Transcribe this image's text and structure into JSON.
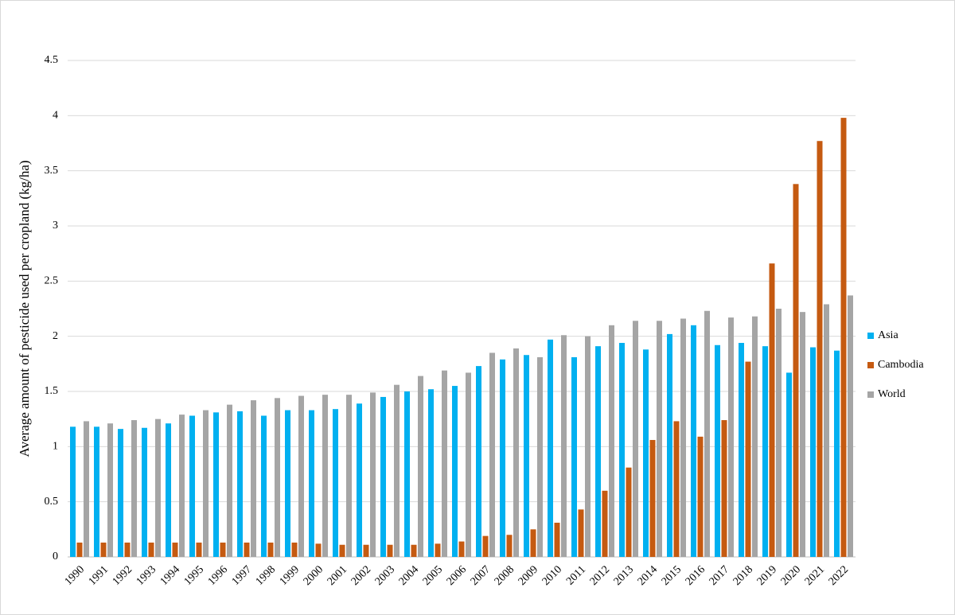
{
  "chart_data": {
    "type": "bar",
    "y_label": "Average  amount of pesticide used per cropland (kg/ha)",
    "categories": [
      "1990",
      "1991",
      "1992",
      "1993",
      "1994",
      "1995",
      "1996",
      "1997",
      "1998",
      "1999",
      "2000",
      "2001",
      "2002",
      "2003",
      "2004",
      "2005",
      "2006",
      "2007",
      "2008",
      "2009",
      "2010",
      "2011",
      "2012",
      "2013",
      "2014",
      "2015",
      "2016",
      "2017",
      "2018",
      "2019",
      "2020",
      "2021",
      "2022"
    ],
    "series": [
      {
        "name": "Asia",
        "color": "#00b0f0",
        "values": [
          1.18,
          1.18,
          1.16,
          1.17,
          1.21,
          1.28,
          1.31,
          1.32,
          1.28,
          1.33,
          1.33,
          1.34,
          1.39,
          1.45,
          1.5,
          1.52,
          1.55,
          1.73,
          1.79,
          1.83,
          1.97,
          1.81,
          1.91,
          1.94,
          1.88,
          2.02,
          2.1,
          1.92,
          1.94,
          1.91,
          1.67,
          1.9,
          1.87
        ]
      },
      {
        "name": "Cambodia",
        "color": "#c55a11",
        "values": [
          0.13,
          0.13,
          0.13,
          0.13,
          0.13,
          0.13,
          0.13,
          0.13,
          0.13,
          0.13,
          0.12,
          0.11,
          0.11,
          0.11,
          0.11,
          0.12,
          0.14,
          0.19,
          0.2,
          0.25,
          0.31,
          0.43,
          0.6,
          0.81,
          1.06,
          1.23,
          1.09,
          1.24,
          1.77,
          2.66,
          3.38,
          3.77,
          3.98
        ]
      },
      {
        "name": "World",
        "color": "#a5a5a5",
        "values": [
          1.23,
          1.21,
          1.24,
          1.25,
          1.29,
          1.33,
          1.38,
          1.42,
          1.44,
          1.46,
          1.47,
          1.47,
          1.49,
          1.56,
          1.64,
          1.69,
          1.67,
          1.85,
          1.89,
          1.81,
          2.01,
          2.0,
          2.1,
          2.14,
          2.14,
          2.16,
          2.23,
          2.17,
          2.18,
          2.25,
          2.22,
          2.29,
          2.37
        ]
      }
    ],
    "ylim": [
      0,
      4.5
    ],
    "yticks": [
      0,
      0.5,
      1,
      1.5,
      2,
      2.5,
      3,
      3.5,
      4,
      4.5
    ],
    "grid": true,
    "legend": "right"
  }
}
